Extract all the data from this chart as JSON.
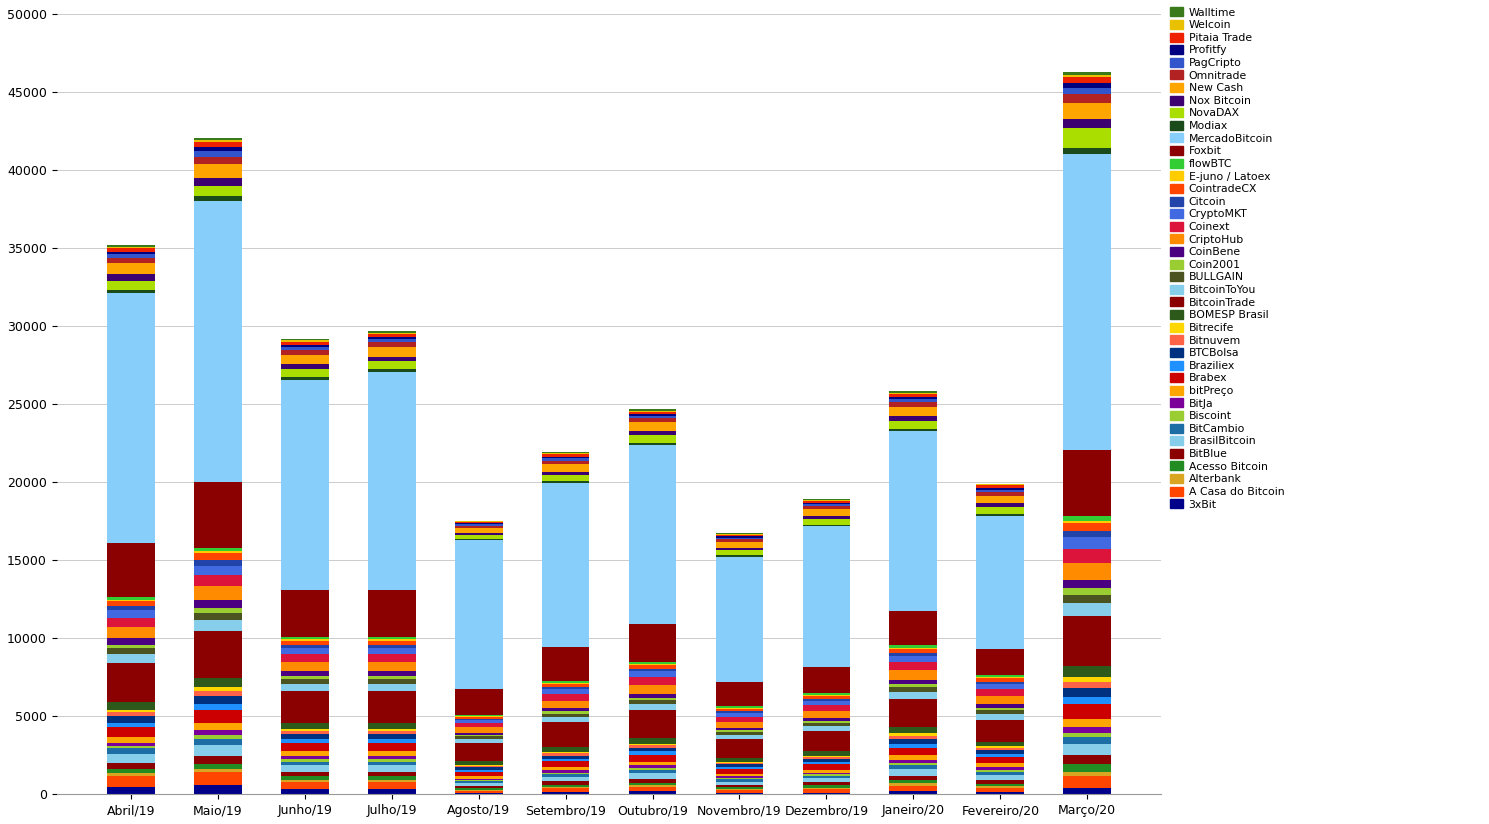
{
  "months": [
    "Abril/19",
    "Maio/19",
    "Junho/19",
    "Julho/19",
    "Agosto/19",
    "Setembro/19",
    "Outubro/19",
    "Novembro/19",
    "Dezembro/19",
    "Janeiro/20",
    "Fevereiro/20",
    "Março/20"
  ],
  "exchanges": [
    "3xBit",
    "A Casa do Bitcoin",
    "Alterbank",
    "Acesso Bitcoin",
    "BitBlue",
    "BrasilBitcoin",
    "BitCambio",
    "Biscoint",
    "BitJa",
    "bitPreço",
    "Brabex",
    "Braziliex",
    "BTCBolsa",
    "Bitnuvem",
    "Bitrecife",
    "BOMESP Brasil",
    "BitcoinTrade",
    "BitcoinToYou",
    "BULLGAIN",
    "Coin2001",
    "CoinBene",
    "CriptoHub",
    "Coinext",
    "CryptoMKT",
    "Citcoin",
    "CointradeCX",
    "E-juno / Latoex",
    "flowBTC",
    "Foxbit",
    "MercadoBitcoin",
    "Modiax",
    "NovaDAX",
    "Nox Bitcoin",
    "New Cash",
    "Omnitrade",
    "PagCripto",
    "Profitfy",
    "Pitaia Trade",
    "Welcoin",
    "Walltime"
  ],
  "colors": {
    "3xBit": "#00008B",
    "A Casa do Bitcoin": "#FF4500",
    "Alterbank": "#DAA520",
    "Acesso Bitcoin": "#228B22",
    "BitBlue": "#8B0000",
    "BrasilBitcoin": "#87CEEB",
    "BitCambio": "#1C6EA4",
    "Biscoint": "#9ACD32",
    "BitJa": "#7B0099",
    "bitPreço": "#FFA500",
    "Brabex": "#CC0000",
    "Braziliex": "#1E90FF",
    "BTCBolsa": "#003080",
    "Bitnuvem": "#FF6347",
    "Bitrecife": "#FFD700",
    "BOMESP Brasil": "#2D5A1B",
    "BitcoinTrade": "#8B0000",
    "BitcoinToYou": "#87CEEB",
    "BULLGAIN": "#4B5320",
    "Coin2001": "#9ACD32",
    "CoinBene": "#4B0082",
    "CriptoHub": "#FF8C00",
    "Coinext": "#DC143C",
    "CryptoMKT": "#4169E1",
    "Citcoin": "#2244AA",
    "CointradeCX": "#FF4500",
    "E-juno / Latoex": "#FFCC00",
    "flowBTC": "#32CD32",
    "Foxbit": "#8B0000",
    "MercadoBitcoin": "#87CEFA",
    "Modiax": "#1B4B1B",
    "NovaDAX": "#AADD00",
    "Nox Bitcoin": "#3D0070",
    "New Cash": "#FFA500",
    "Omnitrade": "#B22222",
    "PagCripto": "#3355CC",
    "Profitfy": "#000080",
    "Pitaia Trade": "#EE2200",
    "Welcoin": "#EAC100",
    "Walltime": "#3A7A1A"
  },
  "data": {
    "3xBit": [
      500,
      600,
      350,
      350,
      80,
      150,
      200,
      100,
      100,
      200,
      150,
      400
    ],
    "A Casa do Bitcoin": [
      700,
      800,
      450,
      450,
      150,
      250,
      300,
      200,
      250,
      350,
      280,
      750
    ],
    "Alterbank": [
      150,
      200,
      150,
      150,
      70,
      80,
      100,
      70,
      80,
      150,
      100,
      300
    ],
    "Acesso Bitcoin": [
      250,
      350,
      200,
      200,
      100,
      150,
      150,
      100,
      150,
      200,
      150,
      500
    ],
    "BitBlue": [
      400,
      500,
      300,
      300,
      150,
      200,
      250,
      150,
      200,
      300,
      250,
      550
    ],
    "BrasilBitcoin": [
      600,
      700,
      400,
      400,
      200,
      300,
      350,
      200,
      250,
      400,
      300,
      700
    ],
    "BitCambio": [
      350,
      400,
      250,
      250,
      100,
      150,
      200,
      150,
      150,
      250,
      200,
      450
    ],
    "Biscoint": [
      150,
      250,
      150,
      150,
      80,
      100,
      150,
      100,
      100,
      150,
      150,
      300
    ],
    "BitJa": [
      200,
      300,
      200,
      200,
      80,
      150,
      150,
      100,
      100,
      200,
      150,
      350
    ],
    "bitPreço": [
      400,
      500,
      300,
      300,
      150,
      200,
      250,
      150,
      200,
      300,
      250,
      550
    ],
    "Brabex": [
      600,
      800,
      550,
      550,
      300,
      400,
      450,
      300,
      350,
      500,
      400,
      950
    ],
    "Braziliex": [
      300,
      400,
      250,
      250,
      120,
      150,
      200,
      150,
      150,
      250,
      200,
      450
    ],
    "BTCBolsa": [
      400,
      500,
      300,
      300,
      150,
      200,
      250,
      150,
      200,
      300,
      250,
      550
    ],
    "Bitnuvem": [
      250,
      350,
      200,
      200,
      80,
      150,
      150,
      100,
      100,
      200,
      150,
      400
    ],
    "Bitrecife": [
      150,
      200,
      150,
      150,
      60,
      80,
      100,
      70,
      80,
      150,
      100,
      300
    ],
    "BOMESP Brasil": [
      500,
      600,
      400,
      400,
      250,
      300,
      350,
      250,
      300,
      400,
      300,
      700
    ],
    "BitcoinTrade": [
      2500,
      3000,
      2000,
      2000,
      1200,
      1600,
      1800,
      1200,
      1300,
      1800,
      1400,
      3200
    ],
    "BitcoinToYou": [
      600,
      700,
      500,
      500,
      250,
      350,
      400,
      280,
      320,
      450,
      380,
      850
    ],
    "BULLGAIN": [
      350,
      450,
      300,
      300,
      160,
      200,
      250,
      180,
      200,
      300,
      250,
      550
    ],
    "Coin2001": [
      250,
      350,
      200,
      200,
      80,
      150,
      150,
      100,
      100,
      200,
      150,
      400
    ],
    "CoinBene": [
      400,
      500,
      300,
      300,
      150,
      200,
      250,
      150,
      200,
      300,
      250,
      550
    ],
    "CriptoHub": [
      700,
      900,
      600,
      600,
      350,
      500,
      550,
      400,
      450,
      600,
      500,
      1100
    ],
    "Coinext": [
      600,
      700,
      500,
      500,
      250,
      400,
      500,
      320,
      380,
      500,
      420,
      900
    ],
    "CryptoMKT": [
      500,
      600,
      400,
      400,
      200,
      320,
      380,
      250,
      280,
      400,
      320,
      750
    ],
    "Citcoin": [
      250,
      350,
      200,
      200,
      80,
      150,
      150,
      100,
      100,
      200,
      150,
      400
    ],
    "CointradeCX": [
      350,
      450,
      250,
      250,
      120,
      200,
      250,
      160,
      200,
      280,
      230,
      500
    ],
    "E-juno / Latoex": [
      80,
      120,
      80,
      80,
      40,
      60,
      80,
      50,
      60,
      80,
      60,
      150
    ],
    "flowBTC": [
      150,
      250,
      150,
      150,
      80,
      120,
      150,
      100,
      120,
      150,
      150,
      300
    ],
    "Foxbit": [
      3500,
      4200,
      3000,
      3000,
      1700,
      2200,
      2400,
      1600,
      1700,
      2200,
      1700,
      4200
    ],
    "MercadoBitcoin": [
      16000,
      18000,
      13500,
      14000,
      9500,
      10500,
      11500,
      8000,
      9000,
      11500,
      8500,
      19000
    ],
    "Modiax": [
      200,
      300,
      180,
      180,
      70,
      130,
      140,
      90,
      100,
      180,
      140,
      380
    ],
    "NovaDAX": [
      600,
      700,
      500,
      500,
      250,
      400,
      500,
      320,
      380,
      500,
      420,
      1300
    ],
    "Nox Bitcoin": [
      400,
      500,
      300,
      300,
      150,
      200,
      250,
      150,
      200,
      300,
      250,
      550
    ],
    "New Cash": [
      700,
      900,
      600,
      600,
      350,
      500,
      550,
      400,
      450,
      600,
      500,
      1000
    ],
    "Omnitrade": [
      350,
      450,
      300,
      300,
      120,
      200,
      250,
      160,
      200,
      280,
      230,
      600
    ],
    "PagCripto": [
      250,
      350,
      200,
      200,
      80,
      150,
      150,
      100,
      100,
      200,
      150,
      400
    ],
    "Profitfy": [
      150,
      250,
      150,
      150,
      80,
      100,
      120,
      80,
      80,
      150,
      120,
      300
    ],
    "Pitaia Trade": [
      250,
      350,
      200,
      200,
      80,
      150,
      150,
      100,
      100,
      200,
      150,
      400
    ],
    "Welcoin": [
      80,
      120,
      80,
      80,
      40,
      60,
      80,
      50,
      60,
      80,
      60,
      150
    ],
    "Walltime": [
      80,
      120,
      80,
      80,
      40,
      60,
      80,
      50,
      60,
      80,
      60,
      150
    ]
  },
  "ylim": [
    0,
    50000
  ],
  "yticks": [
    0,
    5000,
    10000,
    15000,
    20000,
    25000,
    30000,
    35000,
    40000,
    45000,
    50000
  ],
  "background_color": "#FFFFFF",
  "grid_color": "#CCCCCC"
}
